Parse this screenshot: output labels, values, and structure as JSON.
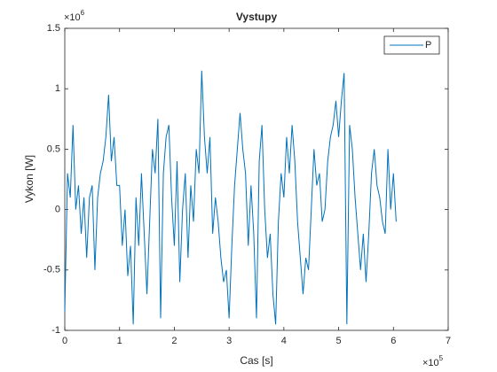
{
  "chart_data": {
    "type": "line",
    "title": "Vystupy",
    "x_label": "Cas [s]",
    "y_label": "Vykon [W]",
    "x_exponent": {
      "base": "×10",
      "power": 5
    },
    "y_exponent": {
      "base": "×10",
      "power": 6
    },
    "x": [
      0,
      0.05,
      0.1,
      0.15,
      0.2,
      0.25,
      0.3,
      0.35,
      0.4,
      0.45,
      0.5,
      0.55,
      0.6,
      0.65,
      0.7,
      0.75,
      0.8,
      0.85,
      0.9,
      0.95,
      1,
      1.05,
      1.1,
      1.15,
      1.2,
      1.25,
      1.3,
      1.35,
      1.4,
      1.45,
      1.5,
      1.55,
      1.6,
      1.65,
      1.7,
      1.75,
      1.8,
      1.85,
      1.9,
      1.95,
      2,
      2.05,
      2.1,
      2.15,
      2.2,
      2.25,
      2.3,
      2.35,
      2.4,
      2.45,
      2.5,
      2.55,
      2.6,
      2.65,
      2.7,
      2.75,
      2.8,
      2.85,
      2.9,
      2.95,
      3,
      3.05,
      3.1,
      3.15,
      3.2,
      3.25,
      3.3,
      3.35,
      3.4,
      3.45,
      3.5,
      3.55,
      3.6,
      3.65,
      3.7,
      3.75,
      3.8,
      3.85,
      3.9,
      3.95,
      4,
      4.05,
      4.1,
      4.15,
      4.2,
      4.25,
      4.3,
      4.35,
      4.4,
      4.45,
      4.5,
      4.55,
      4.6,
      4.65,
      4.7,
      4.75,
      4.8,
      4.85,
      4.9,
      4.95,
      5,
      5.05,
      5.1,
      5.15,
      5.2,
      5.25,
      5.3,
      5.35,
      5.4,
      5.45,
      5.5,
      5.55,
      5.6,
      5.65,
      5.7,
      5.75,
      5.8,
      5.85,
      5.9,
      5.95,
      6,
      6.05
    ],
    "series": [
      {
        "name": "P",
        "color": "#0072bd",
        "values": [
          -0.85,
          0.3,
          0.1,
          0.7,
          0,
          0.2,
          -0.2,
          0.1,
          -0.4,
          0.1,
          0.2,
          -0.5,
          0.1,
          0.3,
          0.4,
          0.6,
          0.95,
          0.4,
          0.6,
          0.2,
          0.2,
          -0.3,
          0,
          -0.55,
          -0.3,
          -0.95,
          0.1,
          -0.3,
          0.3,
          -0.2,
          -0.7,
          -0.1,
          0.5,
          0.3,
          0.75,
          -0.9,
          0.3,
          0.6,
          0.7,
          0.1,
          -0.3,
          0.4,
          -0.6,
          0,
          0.3,
          -0.4,
          0.2,
          -0.1,
          0.5,
          0.3,
          1.15,
          0.6,
          0.3,
          0.6,
          -0.2,
          0.1,
          -0.1,
          -0.4,
          -0.6,
          -0.5,
          -0.9,
          -0.3,
          0.2,
          0.5,
          0.8,
          0.5,
          0.3,
          -0.3,
          0.2,
          -0.2,
          -0.9,
          0.4,
          0.7,
          0,
          -0.4,
          -0.2,
          -0.7,
          -0.95,
          -0.1,
          0.3,
          0.1,
          0.6,
          0.3,
          0.7,
          0.4,
          -0.1,
          -0.4,
          -0.7,
          -0.4,
          -0.5,
          0,
          0.5,
          0.2,
          0.3,
          -0.1,
          0,
          0.4,
          0.6,
          0.7,
          0.9,
          0.6,
          0.9,
          1.13,
          -0.95,
          0.7,
          0.5,
          0.1,
          -0.2,
          -0.5,
          -0.2,
          -0.6,
          -0.2,
          0.3,
          0.5,
          0.2,
          0.1,
          -0.1,
          -0.2,
          0.5,
          0,
          0.3,
          -0.1
        ]
      }
    ],
    "xlim": [
      0,
      7
    ],
    "xticks": [
      0,
      1,
      2,
      3,
      4,
      5,
      6,
      7
    ],
    "ylim": [
      -1,
      1.5
    ],
    "yticks": [
      -1,
      -0.5,
      0,
      0.5,
      1,
      1.5
    ],
    "legend": "top-right",
    "grid": false
  }
}
